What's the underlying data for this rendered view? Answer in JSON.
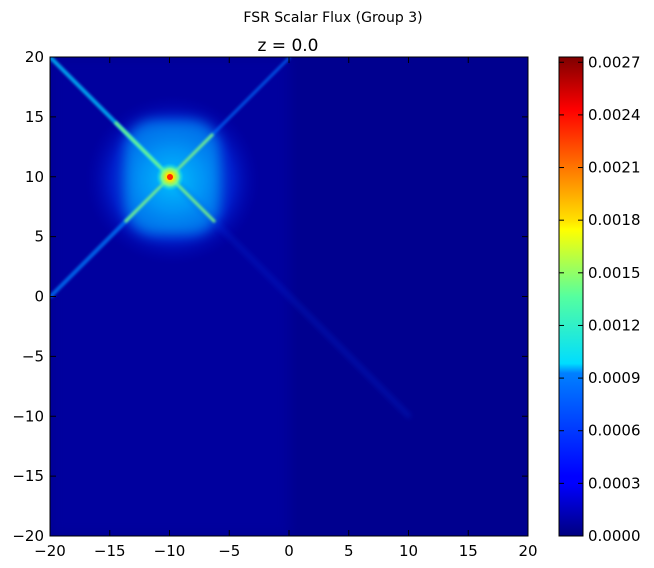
{
  "chart_data": {
    "type": "heatmap",
    "suptitle": "FSR Scalar Flux (Group 3)",
    "title": "z = 0.0",
    "xlim": [
      -20,
      20
    ],
    "ylim": [
      -20,
      20
    ],
    "x_ticks": [
      "−20",
      "−15",
      "−10",
      "−5",
      "0",
      "5",
      "10",
      "15",
      "20"
    ],
    "y_ticks": [
      "20",
      "15",
      "10",
      "5",
      "0",
      "−5",
      "−10",
      "−15",
      "−20"
    ],
    "colormap": "jet",
    "colorbar": {
      "min": 0.0,
      "max": 0.00273,
      "ticks": [
        "0.0027",
        "0.0024",
        "0.0021",
        "0.0018",
        "0.0015",
        "0.0012",
        "0.0009",
        "0.0006",
        "0.0003",
        "0.0000"
      ]
    },
    "source_point": {
      "x": -10,
      "y": 10,
      "peak_value": 0.00273
    }
  }
}
